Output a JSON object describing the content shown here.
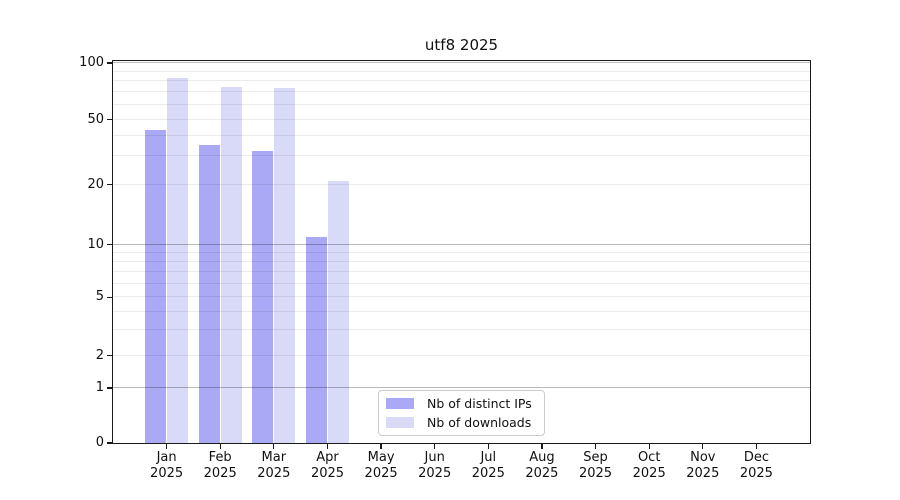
{
  "chart_data": {
    "type": "bar",
    "title": "utf8 2025",
    "categories": [
      "Jan 2025",
      "Feb 2025",
      "Mar 2025",
      "Apr 2025",
      "May 2025",
      "Jun 2025",
      "Jul 2025",
      "Aug 2025",
      "Sep 2025",
      "Oct 2025",
      "Nov 2025",
      "Dec 2025"
    ],
    "series": [
      {
        "name": "Nb of distinct IPs",
        "color": "#a9a9f6",
        "values": [
          43,
          35,
          32,
          11,
          null,
          null,
          null,
          null,
          null,
          null,
          null,
          null
        ]
      },
      {
        "name": "Nb of downloads",
        "color": "#d9d9f8",
        "values": [
          83,
          75,
          74,
          21,
          null,
          null,
          null,
          null,
          null,
          null,
          null,
          null
        ]
      }
    ],
    "xlabel": "",
    "ylabel": "",
    "yticks": [
      0,
      1,
      2,
      5,
      10,
      20,
      50,
      100
    ],
    "ylim": [
      0,
      100
    ],
    "scale": "log-like with linear segment from 0 to 1",
    "grid": "horizontal; light minor lines, darker major lines at 1, 10, 100",
    "legend_position": "lower center inside plot",
    "bar_group": "two bars per month, distinct-IPs bar left of downloads bar",
    "background_color": "#ffffff",
    "frame_color": "#1a1a1a"
  }
}
